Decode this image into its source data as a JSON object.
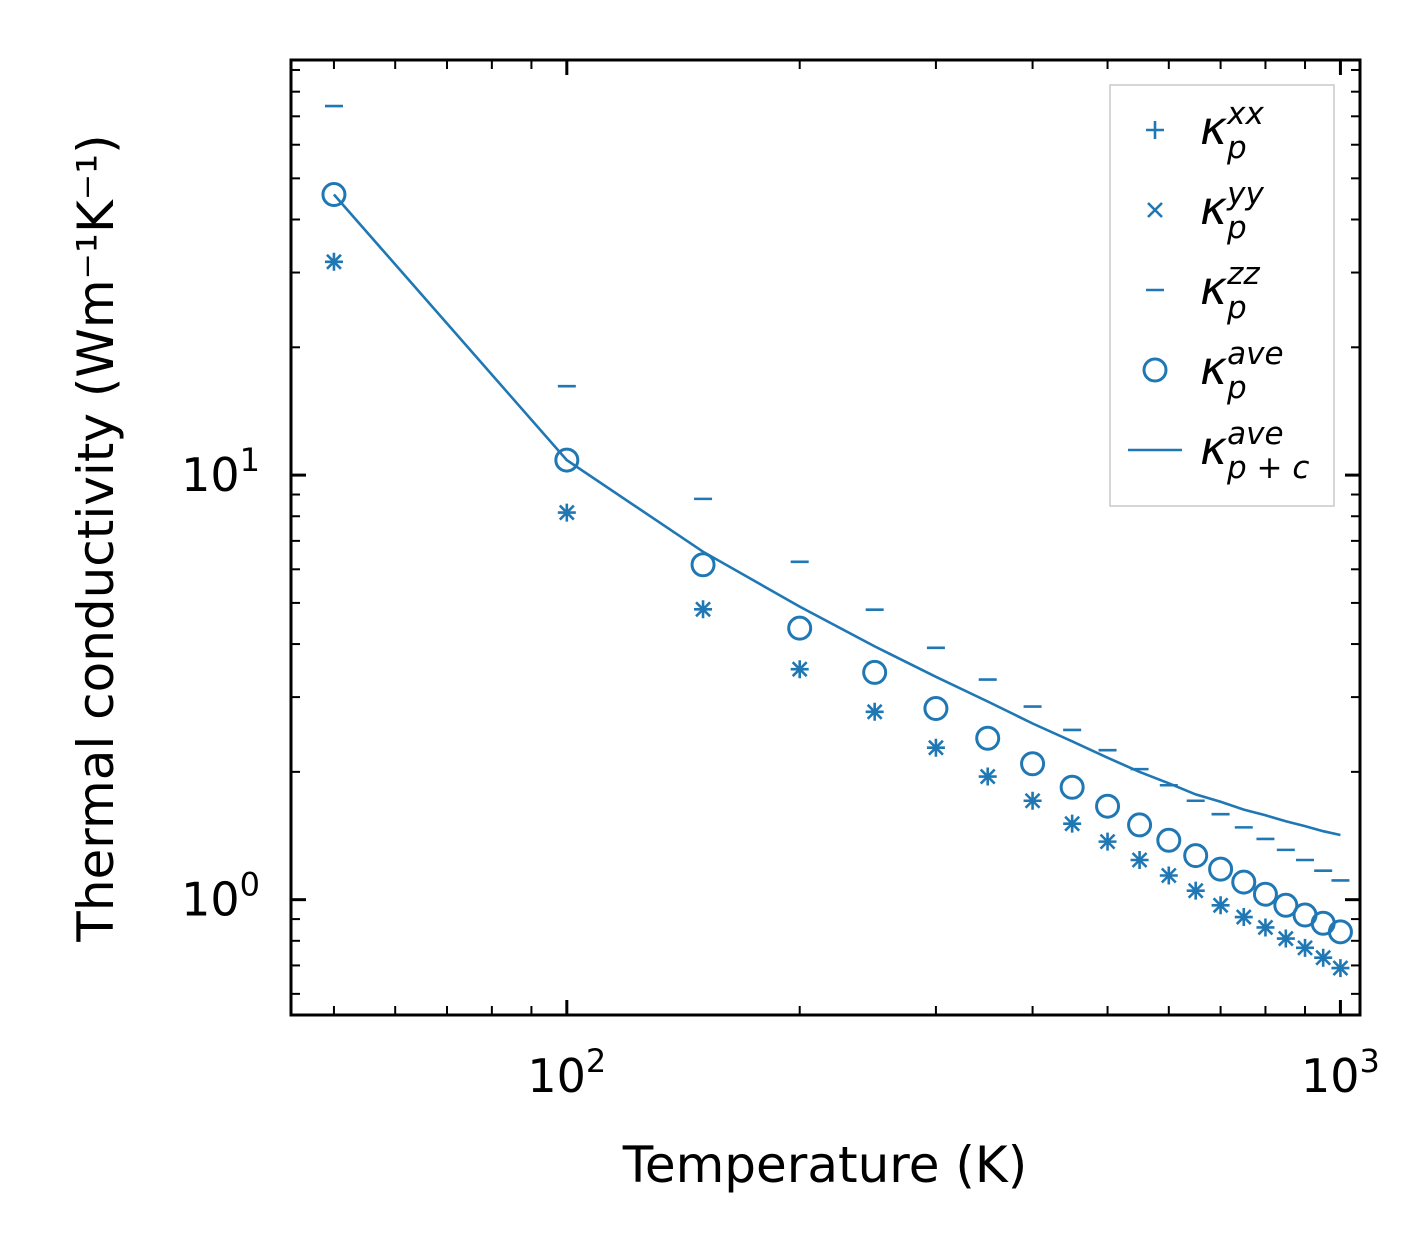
{
  "chart_data": {
    "type": "scatter",
    "x_scale": "log",
    "y_scale": "log",
    "xlabel": "Temperature (K)",
    "ylabel": "Thermal conductivity (Wm⁻¹K⁻¹)",
    "xlim": [
      44,
      1060
    ],
    "ylim": [
      0.535,
      95
    ],
    "x_ticks": [
      {
        "value": 100,
        "base": "10",
        "exp": "2"
      },
      {
        "value": 1000,
        "base": "10",
        "exp": "3"
      }
    ],
    "y_ticks": [
      {
        "value": 1,
        "base": "10",
        "exp": "0"
      },
      {
        "value": 10,
        "base": "10",
        "exp": "1"
      }
    ],
    "x": [
      50,
      100,
      150,
      200,
      250,
      300,
      350,
      400,
      450,
      500,
      550,
      600,
      650,
      700,
      750,
      800,
      850,
      900,
      950,
      1000
    ],
    "series": [
      {
        "name": "κ_p^xx",
        "marker": "plus",
        "base": "κ",
        "sub": "p",
        "sup": "xx",
        "values": [
          31.8,
          8.16,
          4.83,
          3.49,
          2.77,
          2.28,
          1.95,
          1.71,
          1.51,
          1.37,
          1.24,
          1.14,
          1.05,
          0.97,
          0.91,
          0.86,
          0.81,
          0.77,
          0.73,
          0.69
        ]
      },
      {
        "name": "κ_p^yy",
        "marker": "x",
        "base": "κ",
        "sub": "p",
        "sup": "yy",
        "values": [
          31.8,
          8.16,
          4.83,
          3.49,
          2.77,
          2.28,
          1.95,
          1.71,
          1.51,
          1.37,
          1.24,
          1.14,
          1.05,
          0.97,
          0.91,
          0.86,
          0.81,
          0.77,
          0.73,
          0.69
        ]
      },
      {
        "name": "κ_p^zz",
        "marker": "hline",
        "base": "κ",
        "sub": "p",
        "sup": "zz",
        "values": [
          74.0,
          16.2,
          8.79,
          6.25,
          4.82,
          3.92,
          3.3,
          2.85,
          2.51,
          2.25,
          2.03,
          1.86,
          1.71,
          1.59,
          1.48,
          1.39,
          1.31,
          1.24,
          1.17,
          1.11
        ]
      },
      {
        "name": "κ_p^ave",
        "marker": "circle",
        "base": "κ",
        "sub": "p",
        "sup": "ave",
        "values": [
          45.8,
          10.85,
          6.15,
          4.36,
          3.43,
          2.82,
          2.4,
          2.09,
          1.84,
          1.66,
          1.5,
          1.38,
          1.27,
          1.18,
          1.1,
          1.03,
          0.97,
          0.92,
          0.88,
          0.84
        ]
      },
      {
        "name": "κ_p+c^ave",
        "marker": "line",
        "base": "κ",
        "sub": "p + c",
        "sup": "ave",
        "values": [
          45.8,
          10.85,
          6.6,
          4.9,
          3.95,
          3.35,
          2.93,
          2.6,
          2.36,
          2.16,
          2.0,
          1.88,
          1.77,
          1.7,
          1.63,
          1.58,
          1.53,
          1.49,
          1.45,
          1.42
        ]
      }
    ],
    "legend_position": "top-right",
    "color": "#1f77b4",
    "grid": false
  }
}
